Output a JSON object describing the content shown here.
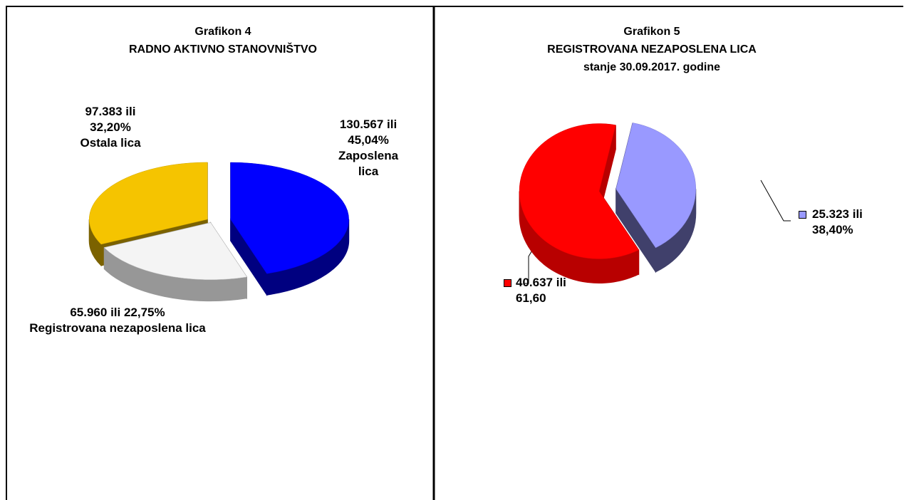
{
  "chart_data": [
    {
      "type": "pie3d",
      "title": "Grafikon 4",
      "subtitle": "RADNO AKTIVNO STANOVNIŠTVO",
      "categories": [
        "Zaposlena lica",
        "Registrovana nezaposlena lica",
        "Ostala lica"
      ],
      "values": [
        45.04,
        22.75,
        32.2
      ],
      "value_labels": [
        "45,04%",
        "22,75%",
        "32,20%"
      ],
      "count_labels": [
        "130.567 ili",
        "65.960 ili",
        "97.383  ili"
      ],
      "colors": [
        "#0000ff",
        "#f4f4f4",
        "#f5c400"
      ]
    },
    {
      "type": "pie3d",
      "title": "Grafikon 5",
      "subtitle": "REGISTROVANA NEZAPOSLENA LICA",
      "annotation": "stanje  30.09.2017. godine",
      "categories": [
        null,
        null
      ],
      "values": [
        38.4,
        61.6
      ],
      "value_labels": [
        "38,40%",
        "61,60"
      ],
      "count_labels": [
        "25.323 ili",
        "40.637 ili"
      ],
      "colors": [
        "#9999ff",
        "#ff0000"
      ]
    }
  ]
}
